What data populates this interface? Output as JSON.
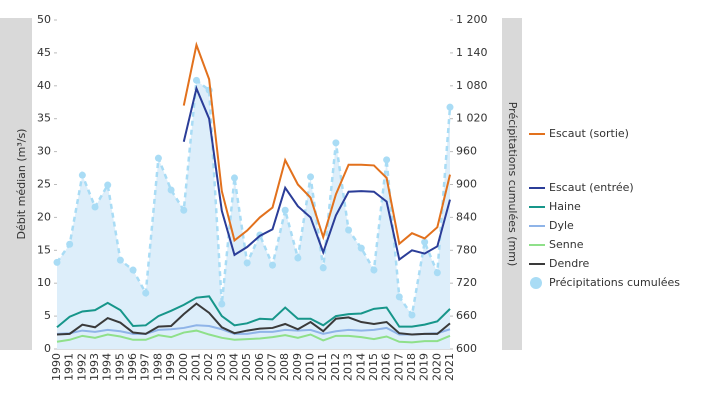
{
  "chart_data": {
    "type": "line",
    "ylabel": "Débit médian (m³/s)",
    "y2label": "Précipitations cumulées (mm)",
    "categories": [
      "1990",
      "1991",
      "1992",
      "1993",
      "1994",
      "1995",
      "1996",
      "1997",
      "1998",
      "1999",
      "2000",
      "2001",
      "2002",
      "2003",
      "2004",
      "2005",
      "2006",
      "2007",
      "2008",
      "2009",
      "2010",
      "2011",
      "2012",
      "2013",
      "2014",
      "2015",
      "2016",
      "2017",
      "2018",
      "2019",
      "2020",
      "2021"
    ],
    "ylim": [
      0,
      50
    ],
    "yticks": [
      0,
      5,
      10,
      15,
      20,
      25,
      30,
      35,
      40,
      45,
      50
    ],
    "y2lim": [
      600,
      1200
    ],
    "y2ticks": [
      600,
      660,
      720,
      780,
      840,
      900,
      960,
      {
        "value": 1020,
        "label": "1 020"
      },
      {
        "value": 1080,
        "label": "1 080"
      },
      {
        "value": 1140,
        "label": "1 140"
      },
      {
        "value": 1200,
        "label": "1 200"
      }
    ],
    "series": [
      {
        "name": "Escaut (sortie)",
        "color": "#e2711d",
        "values": [
          null,
          null,
          null,
          null,
          null,
          null,
          null,
          null,
          null,
          null,
          37,
          46.2,
          41,
          24,
          16.5,
          18,
          20,
          21.5,
          28.7,
          25,
          23,
          17,
          23.5,
          28,
          28,
          27.9,
          26,
          16,
          17.6,
          16.8,
          18.5,
          26.5
        ]
      },
      {
        "name": "Escaut (entrée)",
        "color": "#2b3d98",
        "values": [
          null,
          null,
          null,
          null,
          null,
          null,
          null,
          null,
          null,
          null,
          31.5,
          39.6,
          35,
          21,
          14.3,
          15.5,
          17.2,
          18.2,
          24.5,
          21.7,
          20,
          14.7,
          20.3,
          23.9,
          24,
          23.9,
          22.4,
          13.6,
          15,
          14.5,
          15.6,
          22.7
        ]
      },
      {
        "name": "Haine",
        "color": "#17968a",
        "values": [
          3.3,
          4.9,
          5.7,
          5.9,
          7,
          5.9,
          3.5,
          3.6,
          5,
          5.8,
          6.7,
          7.8,
          8,
          5,
          3.6,
          3.9,
          4.6,
          4.5,
          6.3,
          4.6,
          4.6,
          3.6,
          5,
          5.3,
          5.4,
          6.1,
          6.3,
          3.4,
          3.4,
          3.7,
          4.2,
          6.1
        ]
      },
      {
        "name": "Dyle",
        "color": "#8fb4e8",
        "values": [
          2.3,
          2.4,
          2.8,
          2.6,
          2.9,
          2.7,
          2.3,
          2.3,
          2.9,
          3,
          3.2,
          3.6,
          3.5,
          3,
          2.3,
          2.3,
          2.6,
          2.6,
          2.9,
          2.8,
          2.9,
          2.3,
          2.7,
          2.9,
          2.8,
          2.9,
          3.2,
          2.2,
          2.2,
          2.3,
          2.4,
          3
        ]
      },
      {
        "name": "Senne",
        "color": "#8fe08a",
        "values": [
          1.1,
          1.4,
          2,
          1.7,
          2.2,
          1.9,
          1.4,
          1.4,
          2.1,
          1.8,
          2.5,
          2.8,
          2.2,
          1.7,
          1.4,
          1.5,
          1.6,
          1.8,
          2.1,
          1.7,
          2.2,
          1.3,
          2,
          2,
          1.8,
          1.5,
          1.9,
          1.1,
          1,
          1.2,
          1.2,
          2
        ]
      },
      {
        "name": "Dendre",
        "color": "#3a3a3a",
        "values": [
          2.2,
          2.3,
          3.7,
          3.3,
          4.7,
          4,
          2.5,
          2.3,
          3.4,
          3.5,
          5.3,
          6.9,
          5.5,
          3.3,
          2.4,
          2.8,
          3.1,
          3.2,
          3.8,
          3,
          4.1,
          2.7,
          4.6,
          4.8,
          4.1,
          3.8,
          4.1,
          2.4,
          2.2,
          2.3,
          2.3,
          3.9
        ]
      },
      {
        "name": "Précipitations cumulées",
        "color": "#a9dcf5",
        "axis": "y2",
        "values": [
          758,
          791,
          917,
          859,
          899,
          762,
          744,
          702,
          948,
          890,
          853,
          1090,
          1072,
          682,
          912,
          757,
          808,
          753,
          853,
          766,
          914,
          748,
          976,
          817,
          784,
          744,
          945,
          695,
          662,
          795,
          739,
          1041
        ]
      }
    ]
  }
}
